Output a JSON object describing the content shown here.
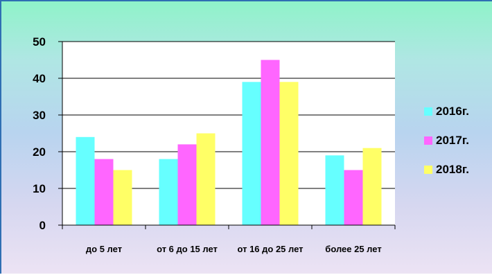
{
  "chart_data": {
    "type": "bar",
    "categories": [
      "до 5 лет",
      "от 6 до 15 лет",
      "от 16 до 25 лет",
      "более 25 лет"
    ],
    "series": [
      {
        "name": "2016г.",
        "values": [
          24,
          18,
          39,
          19
        ],
        "color": "#66ffff"
      },
      {
        "name": "2017г.",
        "values": [
          18,
          22,
          45,
          15
        ],
        "color": "#ff66ff"
      },
      {
        "name": "2018г.",
        "values": [
          15,
          25,
          39,
          21
        ],
        "color": "#ffff66"
      }
    ],
    "ylim": [
      0,
      50
    ],
    "yticks": [
      0,
      10,
      20,
      30,
      40,
      50
    ],
    "grid": true,
    "legend": "right",
    "title": "",
    "xlabel": "",
    "ylabel": ""
  }
}
